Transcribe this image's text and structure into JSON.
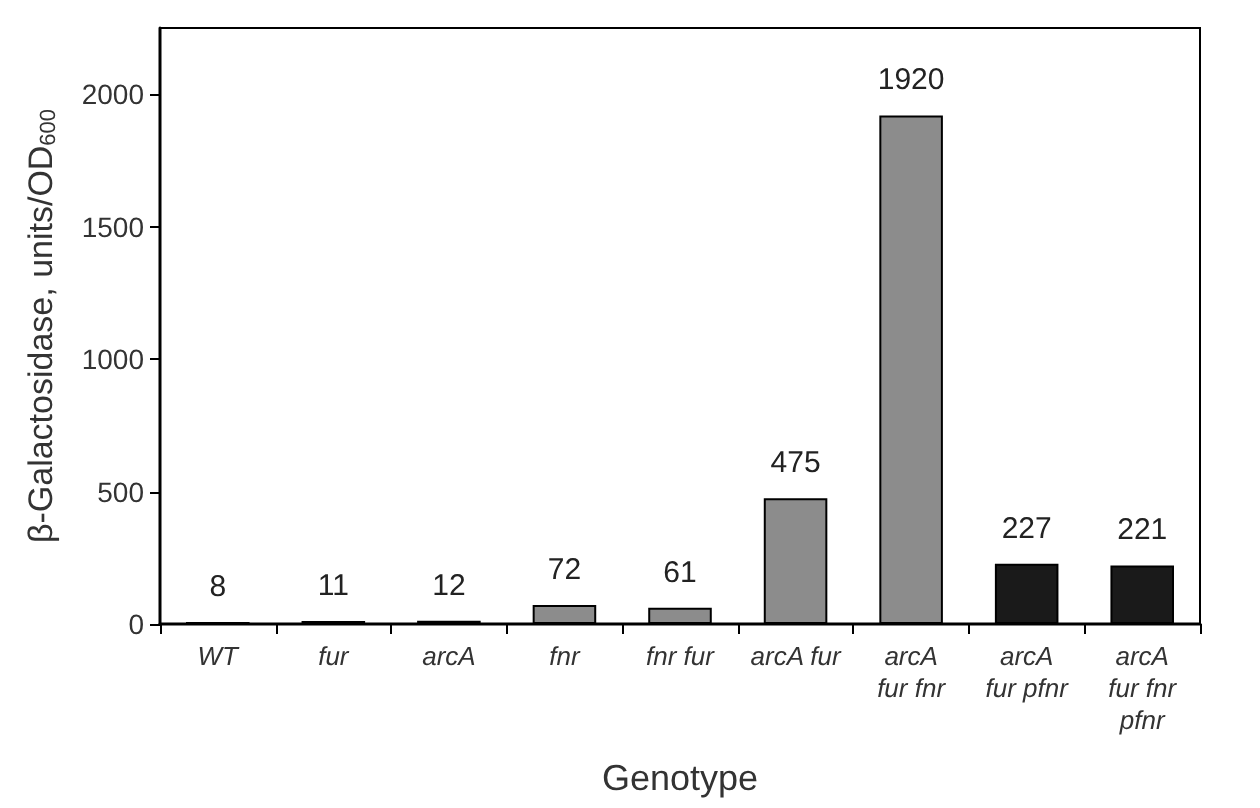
{
  "chart_data": {
    "type": "bar",
    "categories": [
      "WT",
      "fur",
      "arcA",
      "fnr",
      "fnr fur",
      "arcA fur",
      "arcA\nfur fnr",
      "arcA\nfur pfnr",
      "arcA\nfur fnr\npfnr"
    ],
    "values": [
      8,
      11,
      12,
      72,
      61,
      475,
      1920,
      227,
      221
    ],
    "colors": [
      "#8c8c8c",
      "#8c8c8c",
      "#8c8c8c",
      "#8c8c8c",
      "#8c8c8c",
      "#8c8c8c",
      "#8c8c8c",
      "#1a1a1a",
      "#1a1a1a"
    ],
    "data_labels": true,
    "xlabel": "Genotype",
    "ylabel": "β-Galactosidase, units/OD$_{600}$",
    "ylim": [
      0,
      2250
    ],
    "yticks": [
      0,
      500,
      1000,
      1500,
      2000
    ],
    "grid": false
  }
}
